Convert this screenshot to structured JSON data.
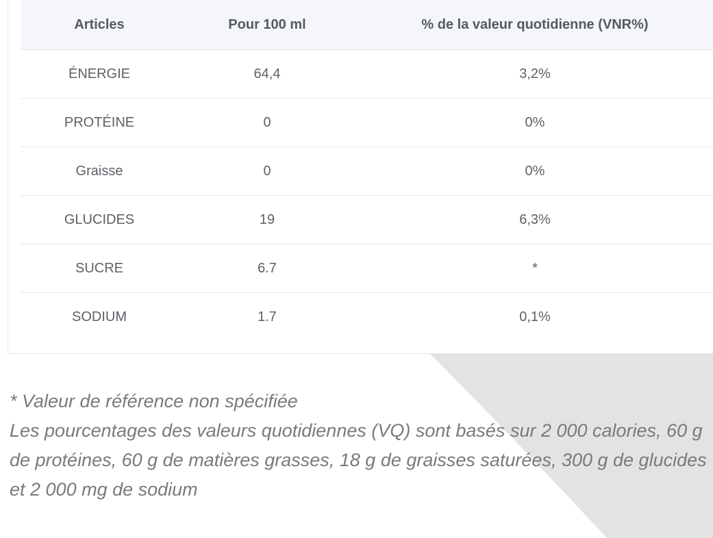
{
  "table": {
    "headers": [
      "Articles",
      "Pour 100 ml",
      "% de la valeur quotidienne (VNR%)"
    ],
    "rows": [
      [
        "ÉNERGIE",
        "64,4",
        "3,2%"
      ],
      [
        "PROTÉINE",
        "0",
        "0%"
      ],
      [
        "Graisse",
        "0",
        "0%"
      ],
      [
        "GLUCIDES",
        "19",
        "6,3%"
      ],
      [
        "SUCRE",
        "6.7",
        "*"
      ],
      [
        "SODIUM",
        "1.7",
        "0,1%"
      ]
    ]
  },
  "notes": {
    "line1": "* Valeur de référence non spécifiée",
    "line2": "Les pourcentages des valeurs quotidiennes (VQ) sont basés sur 2 000 calories, 60 g de protéines, 60 g de matières grasses, 18 g de graisses saturées, 300 g de glucides",
    "line3": "et 2 000 mg de sodium"
  },
  "colors": {
    "header_bg": "#f4f6f9",
    "text": "#5c6166",
    "note_text": "#7a7a7a",
    "bg_shape": "#e3e3e3"
  }
}
